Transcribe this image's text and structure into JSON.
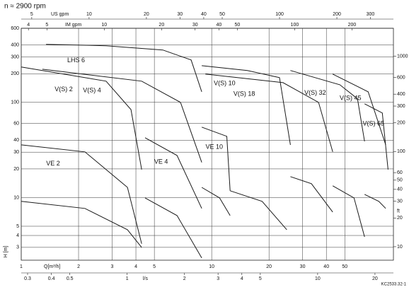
{
  "chart_data": {
    "type": "line",
    "title": "n ≈ 2900 rpm",
    "xlabel": "Q[m³/h]",
    "ylabel": "H [m]",
    "log_scale": true,
    "grid": true,
    "color": "#1a1a1a",
    "xlim": [
      1,
      90
    ],
    "xticks": [
      1,
      2,
      3,
      4,
      5,
      10,
      20,
      30,
      40,
      50
    ],
    "ylim": [
      2.2,
      600
    ],
    "yticks": [
      600,
      400,
      300,
      200,
      100,
      60,
      40,
      30,
      20,
      10,
      5,
      4,
      3
    ],
    "y2label": "ft",
    "y2lim": [
      7.218,
      1968.6
    ],
    "y2ticks": [
      1000,
      600,
      400,
      300,
      200,
      100,
      60,
      50,
      40,
      30,
      20,
      10
    ],
    "us_gpm": {
      "label": "US gpm",
      "lim": [
        4.403,
        396.3
      ],
      "ticks": [
        5,
        10,
        20,
        30,
        40,
        50,
        100,
        200,
        300
      ]
    },
    "im_gpm": {
      "label": "IM gpm",
      "lim": [
        3.666,
        329.9
      ],
      "ticks": [
        4,
        5,
        10,
        20,
        30,
        40,
        50,
        100,
        200
      ]
    },
    "ls": {
      "label": "l/s",
      "lim": [
        0.2778,
        25
      ],
      "ticks": [
        0.3,
        0.4,
        0.5,
        1,
        2,
        3,
        4,
        5,
        10,
        20
      ]
    },
    "note": "KC2533.32-1",
    "series": [
      {
        "name": "LHS 6",
        "x": [
          1.35,
          2.79,
          5.54,
          7.8,
          8.87
        ],
        "values": [
          407,
          393,
          355,
          279,
          129
        ]
      },
      {
        "name": "V(S) 2",
        "x": [
          1,
          2.79,
          3.77,
          4.29
        ],
        "values": [
          235,
          167,
          84,
          19.7
        ]
      },
      {
        "name": "V(S) 4",
        "x": [
          1.29,
          4.29,
          6.86,
          8.87
        ],
        "values": [
          223,
          167,
          100,
          23.4
        ]
      },
      {
        "name": "V(S) 10",
        "x": [
          8.87,
          15.4,
          22.7,
          25.9
        ],
        "values": [
          243,
          216,
          182,
          35.8
        ]
      },
      {
        "name": "V(S) 18",
        "x": [
          9.26,
          23.7,
          36.4,
          43.2,
          null,
          12.5,
          18.4,
          24.8
        ],
        "values": [
          198,
          161,
          100,
          30.2,
          null,
          11.8,
          9.12,
          4.6
        ]
      },
      {
        "name": "V(S) 32",
        "x": [
          25.9,
          47.1,
          58.3,
          63.5,
          null,
          25.9,
          33.4,
          43.2
        ],
        "values": [
          216,
          153,
          109,
          39,
          null,
          16.6,
          14,
          7.05
        ]
      },
      {
        "name": "V(S) 45",
        "x": [
          43.2,
          66.3,
          82,
          null,
          43.2,
          55.9,
          63.5
        ],
        "values": [
          198,
          129,
          35.8,
          null,
          13.3,
          9.93,
          3.87
        ]
      },
      {
        "name": "V(S) 65",
        "x": [
          63.5,
          78.7,
          84.3,
          null,
          63.5,
          75.4,
          82
        ],
        "values": [
          96.6,
          77.4,
          19.7,
          null,
          10.8,
          9.12,
          7.69
        ]
      },
      {
        "name": "VE 2",
        "x": [
          1,
          2.16,
          3.61,
          4.29,
          null,
          1,
          2.16,
          3.61,
          4.29
        ],
        "values": [
          35.8,
          30.2,
          12.8,
          3.27,
          null,
          9.12,
          7.69,
          4.6,
          3.0
        ]
      },
      {
        "name": "VE 4",
        "x": [
          4.47,
          6.58,
          8.87,
          null,
          4.47,
          6.58,
          8.87
        ],
        "values": [
          42.5,
          27.7,
          7.69,
          null,
          9.93,
          6.47,
          2.32
        ]
      },
      {
        "name": "VE 10",
        "x": [
          8.87,
          12,
          12.5,
          null,
          8.87,
          11,
          12.5
        ],
        "values": [
          55,
          44,
          11.8,
          null,
          12.8,
          9.93,
          6.47
        ]
      }
    ]
  }
}
